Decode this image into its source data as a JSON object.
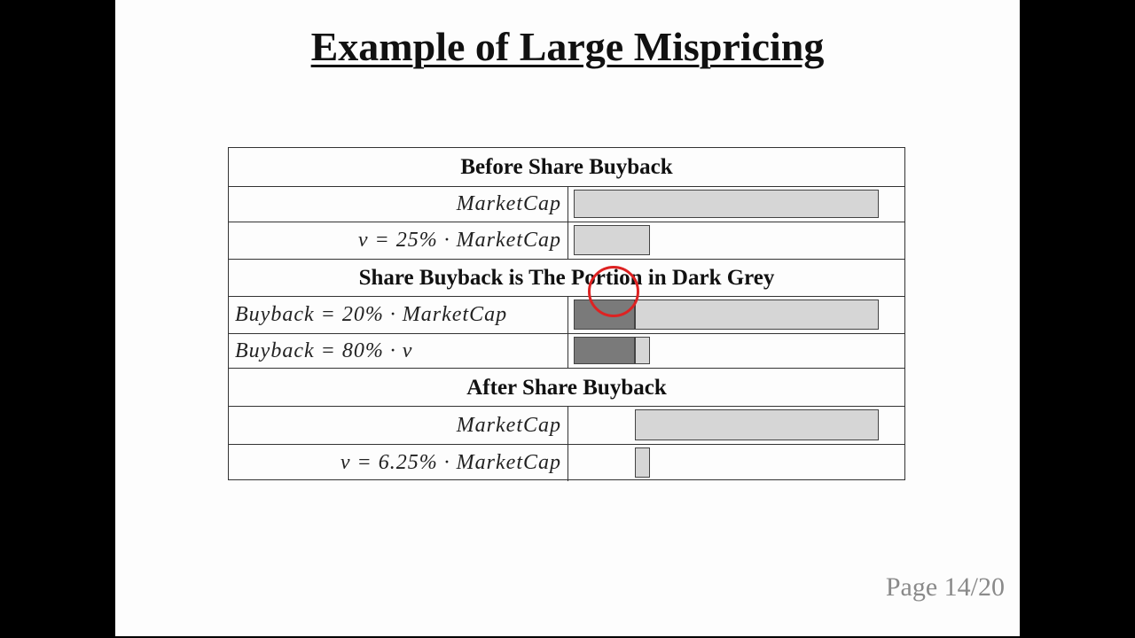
{
  "title": "Example of Large Mispricing",
  "page_label": "Page 14/20",
  "colors": {
    "light_bar": "#d6d6d6",
    "dark_bar": "#7a7a7a",
    "cursor_ring": "#dd2222"
  },
  "rows": [
    {
      "type": "header",
      "text": "Before Share Buyback"
    },
    {
      "type": "bar",
      "label": "MarketCap",
      "align": "right",
      "segments": [
        {
          "start": 0,
          "fraction": 1.0,
          "shade": "light"
        }
      ]
    },
    {
      "type": "bar",
      "label": "v = 25% · MarketCap",
      "align": "right",
      "segments": [
        {
          "start": 0,
          "fraction": 0.25,
          "shade": "light"
        }
      ]
    },
    {
      "type": "header",
      "text": "Share Buyback is The Portion in Dark Grey"
    },
    {
      "type": "bar",
      "label": "Buyback = 20% · MarketCap",
      "align": "left",
      "segments": [
        {
          "start": 0,
          "fraction": 0.2,
          "shade": "dark"
        },
        {
          "start": 0.2,
          "fraction": 0.8,
          "shade": "light"
        }
      ]
    },
    {
      "type": "bar",
      "label": "Buyback = 80% · v",
      "align": "left",
      "segments": [
        {
          "start": 0,
          "fraction": 0.2,
          "shade": "dark"
        },
        {
          "start": 0.2,
          "fraction": 0.05,
          "shade": "light"
        }
      ]
    },
    {
      "type": "header",
      "text": "After Share Buyback"
    },
    {
      "type": "bar",
      "label": "MarketCap",
      "align": "right",
      "segments": [
        {
          "start": 0.2,
          "fraction": 0.8,
          "shade": "light"
        }
      ]
    },
    {
      "type": "bar",
      "label": "v = 6.25% · MarketCap",
      "align": "right",
      "segments": [
        {
          "start": 0.2,
          "fraction": 0.05,
          "shade": "light"
        }
      ]
    }
  ]
}
